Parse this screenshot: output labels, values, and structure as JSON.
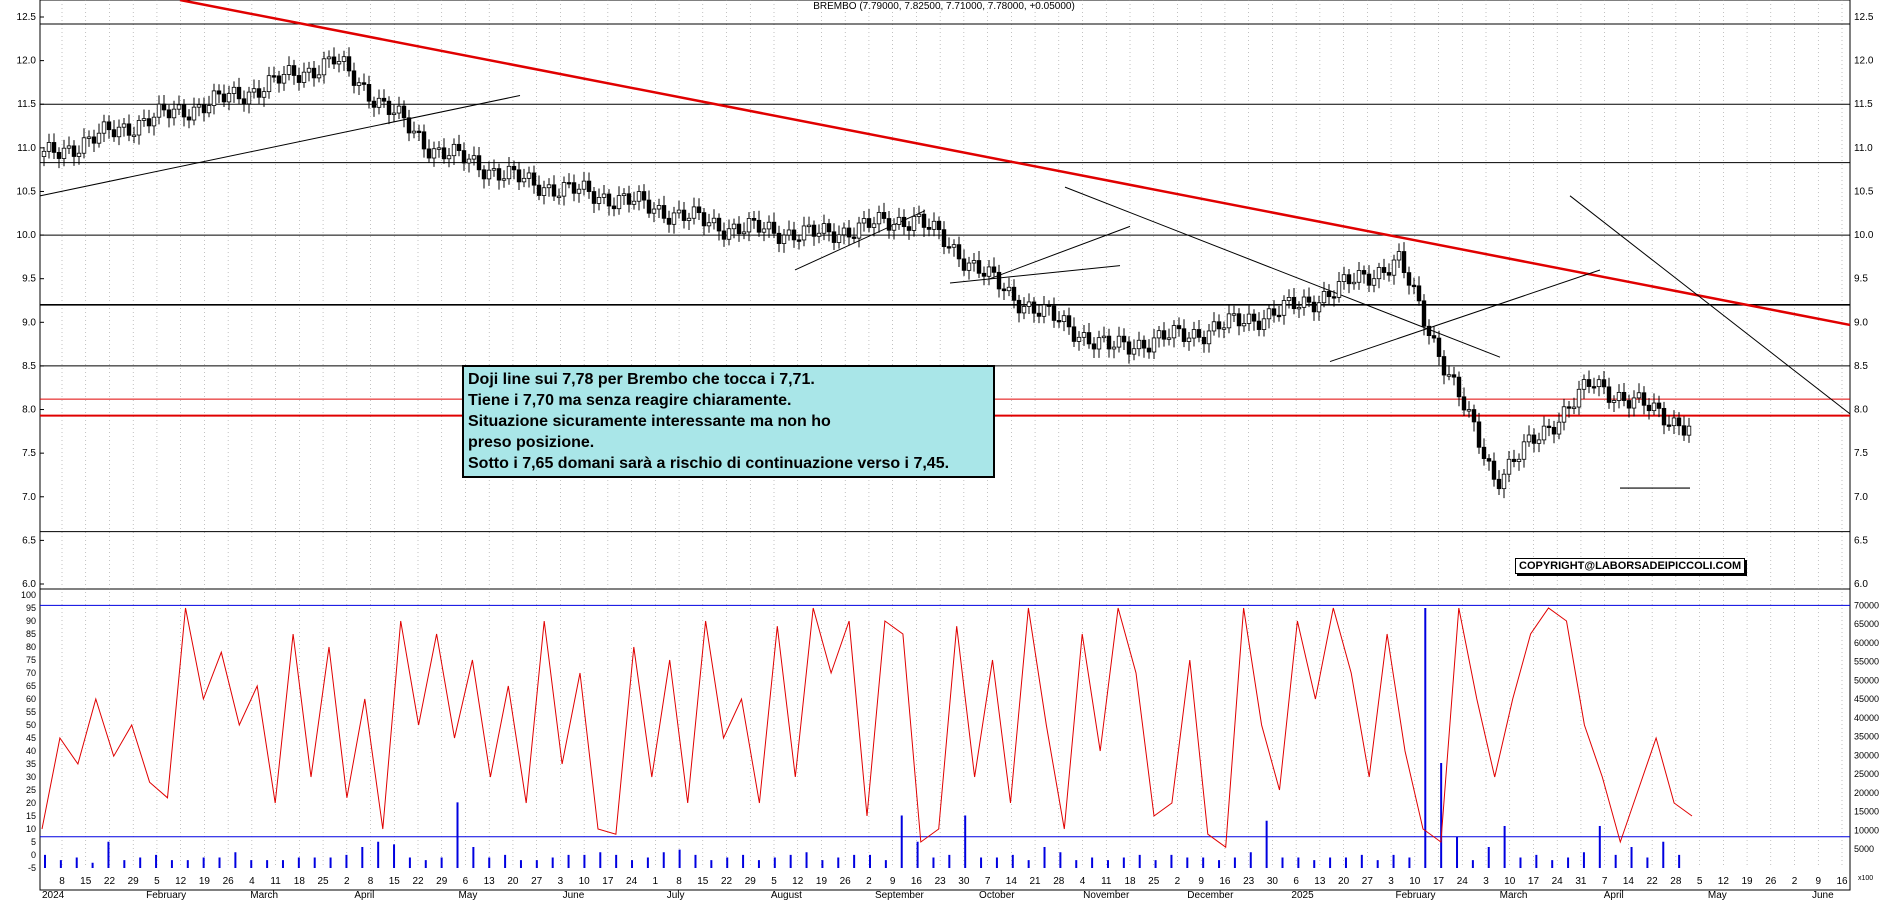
{
  "header": {
    "title": "BREMBO (7.79000, 7.82500, 7.71000, 7.78000, +0.05000)"
  },
  "annotation": {
    "lines": [
      "Doji line sui 7,78 per Brembo che tocca i 7,71.",
      "Tiene i 7,70 ma senza reagire chiaramente.",
      "Situazione sicuramente interessante ma non ho",
      "preso posizione.",
      "Sotto i 7,65 domani  sarà a rischio di continuazione verso i 7,45."
    ]
  },
  "copyright": "COPYRIGHT@LABORSADEIPICCOLI.COM",
  "volume_unit_label": "x100",
  "colors": {
    "trendline": "#e00000",
    "support": "#e00000",
    "oscillator": "#e00000",
    "volume": "#0000e0",
    "level_line": "#000000",
    "grid": "#999999"
  },
  "chart_data": [
    {
      "type": "candlestick",
      "title": "BREMBO (7.79000, 7.82500, 7.71000, 7.78000, +0.05000)",
      "last": {
        "open": 7.79,
        "high": 7.825,
        "low": 7.71,
        "close": 7.78,
        "change": 0.05
      },
      "y_ticks": [
        "6.0",
        "6.5",
        "7.0",
        "7.5",
        "8.0",
        "8.5",
        "9.0",
        "9.5",
        "10.0",
        "10.5",
        "11.0",
        "11.5",
        "12.0",
        "12.5"
      ],
      "ylim": [
        6.0,
        12.5
      ],
      "x_month_labels": [
        "2024",
        "February",
        "March",
        "April",
        "May",
        "June",
        "July",
        "August",
        "September",
        "October",
        "November",
        "December",
        "2025",
        "February",
        "March",
        "April",
        "May",
        "June"
      ],
      "x_day_labels": [
        "8",
        "15",
        "22",
        "29",
        "5",
        "12",
        "19",
        "26",
        "4",
        "11",
        "18",
        "25",
        "2",
        "8",
        "15",
        "22",
        "29",
        "6",
        "13",
        "20",
        "27",
        "3",
        "10",
        "17",
        "24",
        "1",
        "8",
        "15",
        "22",
        "29",
        "5",
        "12",
        "19",
        "26",
        "2",
        "9",
        "16",
        "23",
        "30",
        "7",
        "14",
        "21",
        "28",
        "4",
        "11",
        "18",
        "25",
        "2",
        "9",
        "16",
        "23",
        "30",
        "6",
        "13",
        "20",
        "27",
        "3",
        "10",
        "17",
        "24",
        "3",
        "10",
        "17",
        "24",
        "31",
        "7",
        "14",
        "22",
        "28",
        "5",
        "12",
        "19",
        "26",
        "2",
        "9",
        "16"
      ],
      "horizontal_levels": [
        12.42,
        11.5,
        10.83,
        10.0,
        9.2,
        8.5,
        8.12,
        7.93,
        6.6
      ],
      "grid": true,
      "monthly_closes": [
        10.9,
        11.3,
        11.6,
        12.0,
        11.0,
        10.6,
        10.4,
        10.1,
        10.0,
        10.2,
        9.3,
        8.7,
        8.9,
        9.2,
        9.7,
        7.2,
        8.3,
        7.8
      ]
    },
    {
      "type": "line_and_bar",
      "y_ticks_left": [
        "-5",
        "0",
        "5",
        "10",
        "15",
        "20",
        "25",
        "30",
        "35",
        "40",
        "45",
        "50",
        "55",
        "60",
        "65",
        "70",
        "75",
        "80",
        "85",
        "90",
        "95",
        "100"
      ],
      "ylim_left": [
        -5,
        100
      ],
      "y_ticks_right": [
        "5000",
        "10000",
        "15000",
        "20000",
        "25000",
        "30000",
        "35000",
        "40000",
        "45000",
        "50000",
        "55000",
        "60000",
        "65000",
        "70000"
      ],
      "ylim_right": [
        0,
        70000
      ],
      "reference_lines": [
        96,
        7
      ],
      "series": [
        {
          "kind": "oscillator",
          "values": [
            10,
            45,
            35,
            60,
            38,
            50,
            28,
            22,
            95,
            60,
            78,
            50,
            65,
            20,
            85,
            30,
            80,
            22,
            60,
            10,
            90,
            50,
            85,
            45,
            75,
            30,
            65,
            20,
            90,
            35,
            70,
            10,
            8,
            80,
            30,
            75,
            20,
            90,
            45,
            60,
            20,
            88,
            30,
            95,
            70,
            90,
            15,
            90,
            85,
            5,
            10,
            88,
            30,
            75,
            20,
            95,
            50,
            10,
            85,
            40,
            95,
            70,
            15,
            20,
            75,
            8,
            3,
            95,
            50,
            25,
            90,
            60,
            95,
            70,
            30,
            85,
            40,
            10,
            5,
            95,
            60,
            30,
            60,
            85,
            95,
            90,
            50,
            30,
            5,
            25,
            45,
            20,
            15
          ]
        },
        {
          "kind": "volume",
          "values": [
            5,
            3,
            4,
            2,
            10,
            3,
            4,
            5,
            3,
            3,
            4,
            4,
            6,
            3,
            3,
            3,
            4,
            4,
            4,
            5,
            8,
            10,
            9,
            4,
            3,
            4,
            25,
            8,
            4,
            5,
            3,
            3,
            4,
            5,
            5,
            6,
            5,
            3,
            4,
            6,
            7,
            5,
            3,
            4,
            5,
            3,
            4,
            5,
            6,
            3,
            4,
            5,
            5,
            3,
            20,
            10,
            4,
            5,
            20,
            4,
            4,
            5,
            3,
            8,
            6,
            3,
            4,
            3,
            4,
            5,
            3,
            5,
            4,
            4,
            3,
            4,
            6,
            18,
            4,
            4,
            3,
            4,
            4,
            5,
            3,
            5,
            4,
            99,
            40,
            12,
            3,
            8,
            16,
            4,
            5,
            3,
            4,
            6,
            16,
            5,
            8,
            4,
            10,
            5
          ]
        }
      ]
    }
  ]
}
